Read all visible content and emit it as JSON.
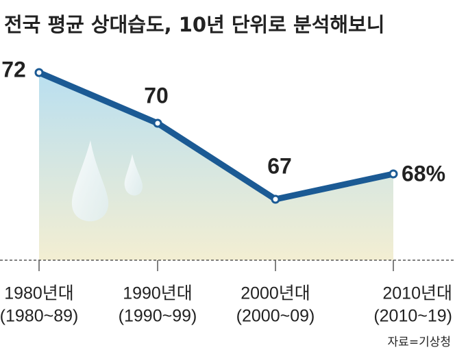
{
  "chart_data": {
    "type": "line",
    "title": "전국 평균 상대습도, 10년 단위로 분석해보니",
    "categories": [
      "1980년대",
      "1990년대",
      "2000년대",
      "2010년대"
    ],
    "category_ranges": [
      "(1980~89)",
      "(1990~99)",
      "(2000~09)",
      "(2010~19)"
    ],
    "values": [
      72,
      70,
      67,
      68
    ],
    "value_labels": [
      "72",
      "70",
      "67",
      "68%"
    ],
    "color": "#1b5a94",
    "source": "자료=기상청"
  }
}
